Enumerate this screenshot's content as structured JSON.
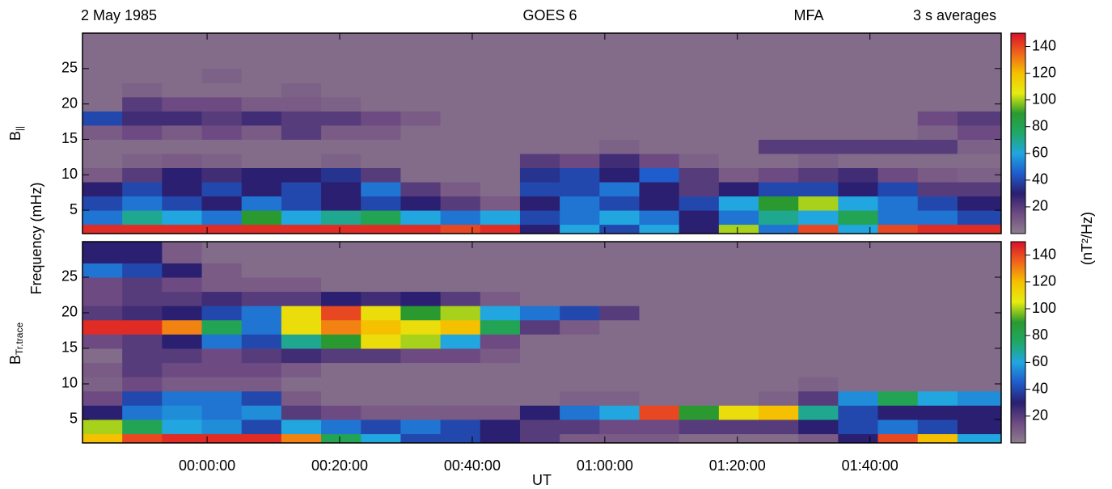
{
  "chart_data": [
    {
      "type": "heatmap",
      "annotations": [
        "2 May 1985",
        "GOES 6",
        "MFA",
        "3 s averages"
      ],
      "ylabel": "Frequency (mHz)",
      "label": "B",
      "label_sub": "||",
      "colorbar_label": "(nT²/Hz)",
      "xbins": [
        -18.8,
        -12.8,
        -6.8,
        -0.8,
        5.2,
        11.2,
        17.2,
        23.2,
        29.2,
        35.2,
        41.2,
        47.2,
        53.2,
        59.2,
        65.2,
        71.2,
        77.2,
        83.2,
        89.2,
        95.2,
        101.2,
        107.2,
        113.2,
        119.8
      ],
      "ybins": [
        1.7,
        3,
        5,
        7,
        9,
        11,
        13,
        15,
        17,
        19,
        21,
        23,
        25,
        27,
        30
      ],
      "xlim": [
        -18.8,
        119.8
      ],
      "ylim": [
        1.7,
        30
      ],
      "xticks": [
        0,
        20,
        40,
        60,
        80,
        100
      ],
      "yticks": [
        5,
        10,
        15,
        20,
        25
      ],
      "clim": [
        0,
        150
      ],
      "cticks": [
        20,
        40,
        60,
        80,
        100,
        120,
        140
      ],
      "colormap": [
        "#8e7d8e",
        "#6e4a82",
        "#2a1f70",
        "#1f5ccc",
        "#21a6e0",
        "#1fa866",
        "#2a9a30",
        "#e6ec10",
        "#f5c000",
        "#f0641c",
        "#d8102a"
      ],
      "values": [
        [
          145,
          145,
          145,
          145,
          145,
          145,
          145,
          145,
          145,
          140,
          145,
          30,
          60,
          40,
          60,
          30,
          100,
          50,
          140,
          60,
          140,
          145,
          145
        ],
        [
          50,
          70,
          60,
          50,
          90,
          60,
          70,
          80,
          60,
          50,
          60,
          40,
          50,
          60,
          50,
          30,
          50,
          70,
          60,
          80,
          50,
          50,
          40
        ],
        [
          40,
          50,
          40,
          30,
          50,
          40,
          30,
          40,
          30,
          20,
          10,
          30,
          50,
          40,
          30,
          40,
          60,
          90,
          100,
          60,
          50,
          40,
          30
        ],
        [
          30,
          40,
          30,
          40,
          30,
          40,
          30,
          50,
          20,
          10,
          5,
          40,
          40,
          50,
          30,
          20,
          30,
          40,
          40,
          30,
          40,
          20,
          20
        ],
        [
          10,
          20,
          30,
          25,
          30,
          30,
          35,
          20,
          5,
          5,
          5,
          35,
          40,
          30,
          45,
          20,
          10,
          15,
          20,
          25,
          15,
          10,
          8
        ],
        [
          5,
          8,
          10,
          8,
          5,
          5,
          8,
          5,
          5,
          5,
          5,
          20,
          15,
          25,
          15,
          8,
          5,
          5,
          8,
          5,
          5,
          5,
          5
        ],
        [
          5,
          5,
          5,
          5,
          5,
          5,
          5,
          5,
          5,
          5,
          5,
          5,
          5,
          8,
          5,
          5,
          5,
          20,
          20,
          20,
          20,
          20,
          8
        ],
        [
          10,
          15,
          10,
          15,
          10,
          20,
          10,
          10,
          5,
          5,
          5,
          5,
          5,
          5,
          5,
          5,
          5,
          5,
          5,
          5,
          5,
          8,
          15
        ],
        [
          40,
          25,
          25,
          20,
          25,
          20,
          20,
          15,
          10,
          5,
          5,
          5,
          5,
          5,
          5,
          5,
          5,
          5,
          5,
          5,
          5,
          15,
          20
        ],
        [
          5,
          20,
          15,
          15,
          10,
          10,
          8,
          5,
          5,
          5,
          5,
          5,
          5,
          5,
          5,
          5,
          5,
          5,
          5,
          5,
          5,
          5,
          5
        ],
        [
          5,
          8,
          5,
          5,
          5,
          8,
          5,
          5,
          5,
          5,
          5,
          5,
          5,
          5,
          5,
          5,
          5,
          5,
          5,
          5,
          5,
          5,
          5
        ],
        [
          5,
          5,
          5,
          8,
          5,
          5,
          5,
          5,
          5,
          5,
          5,
          5,
          5,
          5,
          5,
          5,
          5,
          5,
          5,
          5,
          5,
          5,
          5
        ],
        [
          5,
          5,
          5,
          5,
          5,
          5,
          5,
          5,
          5,
          5,
          5,
          5,
          5,
          5,
          5,
          5,
          5,
          5,
          5,
          5,
          5,
          5,
          5
        ],
        [
          5,
          5,
          5,
          5,
          5,
          5,
          5,
          5,
          5,
          5,
          5,
          5,
          5,
          5,
          5,
          5,
          5,
          5,
          5,
          5,
          5,
          5,
          5
        ]
      ]
    },
    {
      "type": "heatmap",
      "label": "B",
      "label_sub": "Tr.trace",
      "xlabel": "UT",
      "xbins": [
        -18.8,
        -12.8,
        -6.8,
        -0.8,
        5.2,
        11.2,
        17.2,
        23.2,
        29.2,
        35.2,
        41.2,
        47.2,
        53.2,
        59.2,
        65.2,
        71.2,
        77.2,
        83.2,
        89.2,
        95.2,
        101.2,
        107.2,
        113.2,
        119.8
      ],
      "ybins": [
        1.7,
        3,
        5,
        7,
        9,
        11,
        13,
        15,
        17,
        19,
        21,
        23,
        25,
        27,
        30
      ],
      "xlim": [
        -18.8,
        119.8
      ],
      "ylim": [
        1.7,
        30
      ],
      "xticks": [
        {
          "value": 0,
          "label": "00:00:00"
        },
        {
          "value": 20,
          "label": "00:20:00"
        },
        {
          "value": 40,
          "label": "00:40:00"
        },
        {
          "value": 60,
          "label": "01:00:00"
        },
        {
          "value": 80,
          "label": "01:20:00"
        },
        {
          "value": 100,
          "label": "01:40:00"
        }
      ],
      "yticks": [
        5,
        10,
        15,
        20,
        25
      ],
      "clim": [
        0,
        150
      ],
      "cticks": [
        20,
        40,
        60,
        80,
        100,
        120,
        140
      ],
      "colormap": [
        "#8e7d8e",
        "#6e4a82",
        "#2a1f70",
        "#1f5ccc",
        "#21a6e0",
        "#1fa866",
        "#2a9a30",
        "#e6ec10",
        "#f5c000",
        "#f0641c",
        "#d8102a"
      ],
      "values": [
        [
          120,
          140,
          145,
          145,
          145,
          130,
          80,
          60,
          40,
          40,
          30,
          20,
          10,
          10,
          10,
          5,
          5,
          5,
          10,
          30,
          140,
          120,
          60
        ],
        [
          100,
          80,
          60,
          55,
          40,
          60,
          50,
          40,
          50,
          40,
          30,
          20,
          20,
          15,
          15,
          20,
          20,
          20,
          30,
          40,
          50,
          40,
          30
        ],
        [
          30,
          50,
          55,
          50,
          55,
          20,
          15,
          10,
          10,
          10,
          10,
          30,
          50,
          60,
          140,
          90,
          110,
          120,
          70,
          40,
          30,
          30,
          30
        ],
        [
          15,
          40,
          50,
          50,
          40,
          10,
          5,
          5,
          5,
          5,
          5,
          5,
          8,
          8,
          5,
          5,
          5,
          8,
          20,
          55,
          80,
          60,
          55
        ],
        [
          8,
          15,
          10,
          10,
          10,
          5,
          5,
          5,
          5,
          5,
          5,
          5,
          5,
          5,
          5,
          5,
          5,
          5,
          8,
          5,
          5,
          5,
          5
        ],
        [
          10,
          20,
          15,
          15,
          15,
          10,
          5,
          5,
          5,
          5,
          5,
          5,
          5,
          5,
          5,
          5,
          5,
          5,
          5,
          5,
          5,
          5,
          5
        ],
        [
          5,
          20,
          20,
          15,
          20,
          25,
          20,
          20,
          15,
          15,
          10,
          5,
          5,
          5,
          5,
          5,
          5,
          5,
          5,
          5,
          5,
          5,
          5
        ],
        [
          15,
          20,
          30,
          50,
          40,
          70,
          90,
          110,
          100,
          60,
          15,
          5,
          5,
          5,
          5,
          5,
          5,
          5,
          5,
          5,
          5,
          5,
          5
        ],
        [
          145,
          145,
          130,
          80,
          50,
          110,
          130,
          120,
          110,
          120,
          80,
          20,
          10,
          5,
          5,
          5,
          5,
          5,
          5,
          5,
          5,
          5,
          5
        ],
        [
          20,
          25,
          30,
          40,
          50,
          110,
          140,
          110,
          90,
          100,
          60,
          50,
          40,
          20,
          5,
          5,
          5,
          5,
          5,
          5,
          5,
          5,
          5
        ],
        [
          15,
          20,
          20,
          25,
          20,
          20,
          30,
          25,
          30,
          20,
          10,
          5,
          5,
          5,
          5,
          5,
          5,
          5,
          5,
          5,
          5,
          5,
          5
        ],
        [
          15,
          20,
          15,
          10,
          10,
          10,
          5,
          5,
          5,
          5,
          5,
          5,
          5,
          5,
          5,
          5,
          5,
          5,
          5,
          5,
          5,
          5,
          5
        ],
        [
          50,
          40,
          30,
          10,
          5,
          5,
          5,
          5,
          5,
          5,
          5,
          5,
          5,
          5,
          5,
          5,
          5,
          5,
          5,
          5,
          5,
          5,
          5
        ],
        [
          30,
          30,
          10,
          5,
          5,
          5,
          5,
          5,
          5,
          5,
          5,
          5,
          5,
          5,
          5,
          5,
          5,
          5,
          5,
          5,
          5,
          5,
          5
        ]
      ]
    }
  ]
}
